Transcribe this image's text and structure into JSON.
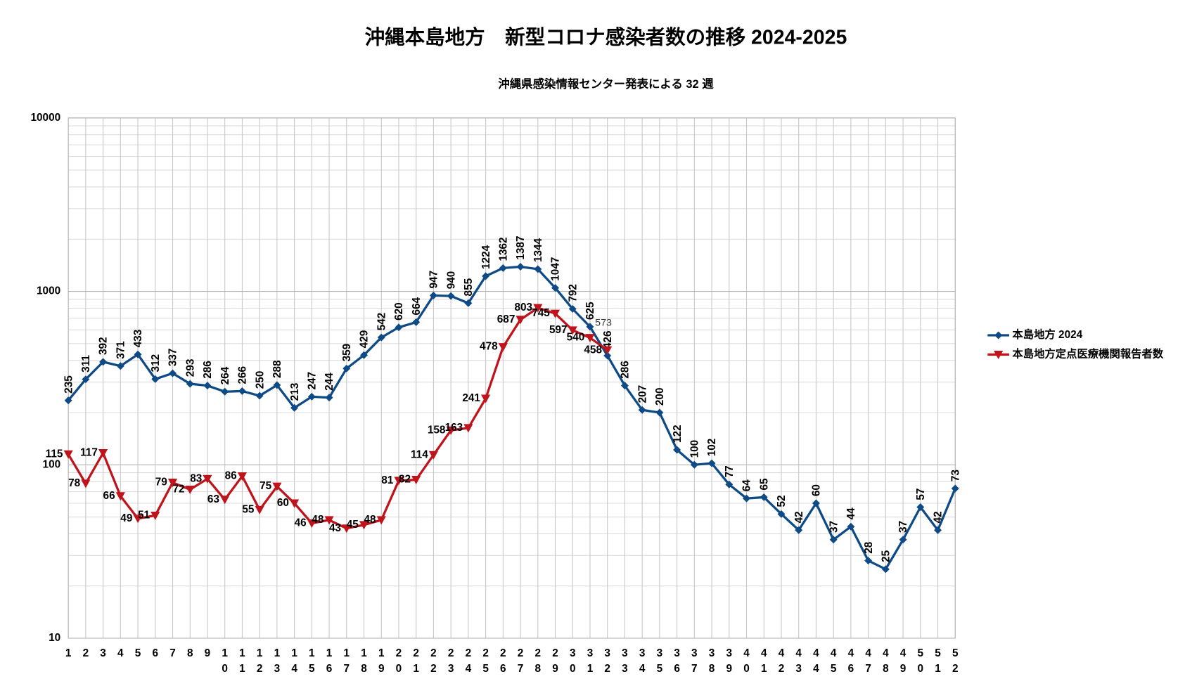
{
  "chart_data": {
    "type": "line",
    "title": "沖縄本島地方　新型コロナ感染者数の推移 2024-2025",
    "subtitle": "沖縄県感染情報センター発表による 32 週",
    "categories": [
      "1",
      "2",
      "3",
      "4",
      "5",
      "6",
      "7",
      "8",
      "9",
      "10",
      "11",
      "12",
      "13",
      "14",
      "15",
      "16",
      "17",
      "18",
      "19",
      "20",
      "21",
      "22",
      "23",
      "24",
      "25",
      "26",
      "27",
      "28",
      "29",
      "30",
      "31",
      "32",
      "33",
      "34",
      "35",
      "36",
      "37",
      "38",
      "39",
      "40",
      "41",
      "42",
      "43",
      "44",
      "45",
      "46",
      "47",
      "48",
      "49",
      "50",
      "51",
      "52"
    ],
    "series": [
      {
        "name": "本島地方 2024",
        "color": "#0d4a86",
        "marker": "diamond",
        "values": [
          235,
          311,
          392,
          371,
          433,
          312,
          337,
          293,
          286,
          264,
          266,
          250,
          288,
          213,
          247,
          244,
          359,
          429,
          542,
          620,
          664,
          947,
          940,
          855,
          1224,
          1362,
          1387,
          1344,
          1047,
          792,
          625,
          426,
          286,
          207,
          200,
          122,
          100,
          102,
          77,
          64,
          65,
          52,
          42,
          60,
          37,
          44,
          28,
          25,
          37,
          57,
          42,
          73
        ]
      },
      {
        "name": "本島地方定点医療機関報告者数",
        "color": "#c0141c",
        "marker": "triangle-down",
        "values": [
          115,
          78,
          117,
          66,
          49,
          51,
          79,
          72,
          83,
          63,
          86,
          55,
          75,
          60,
          46,
          48,
          43,
          45,
          48,
          81,
          82,
          114,
          158,
          163,
          241,
          478,
          687,
          803,
          745,
          597,
          540,
          458,
          null,
          null,
          null,
          null,
          null,
          null,
          null,
          null,
          null,
          null,
          null,
          null,
          null,
          null,
          null,
          null,
          null,
          null,
          null,
          null
        ]
      }
    ],
    "annotations": [
      {
        "text": "573",
        "x": "32",
        "y": 573
      }
    ],
    "ylim": [
      10,
      10000
    ],
    "yticks": [
      10,
      100,
      1000,
      10000
    ],
    "log_scale": true,
    "grid": true,
    "minor_grid": true,
    "legend": "right"
  }
}
